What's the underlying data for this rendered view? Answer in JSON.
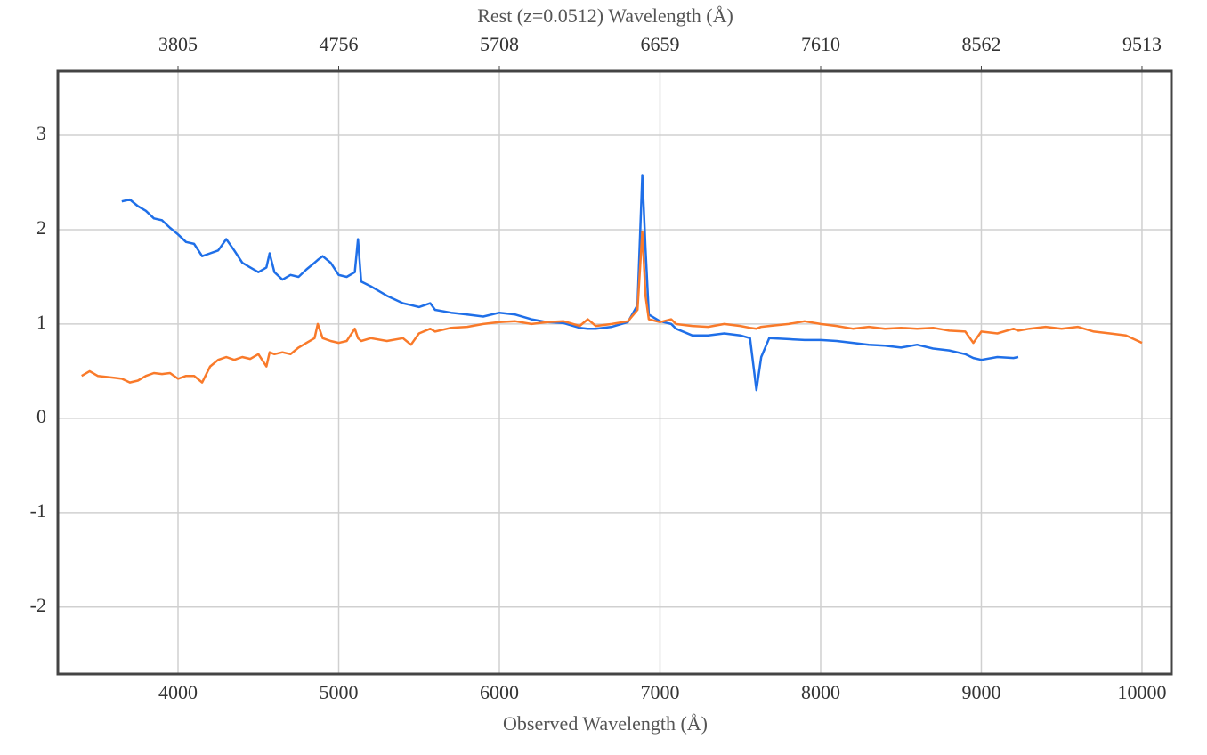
{
  "chart_data": {
    "type": "line",
    "title": "Rest (z=0.0512) Wavelength (Å)",
    "x_label": "Observed Wavelength (Å)",
    "x": [
      3400,
      3450,
      3500,
      3600,
      3650,
      3700,
      3750,
      3800,
      3850,
      3900,
      3950,
      4000,
      4050,
      4100,
      4150,
      4200,
      4250,
      4300,
      4350,
      4400,
      4450,
      4500,
      4550,
      4570,
      4600,
      4650,
      4700,
      4750,
      4800,
      4850,
      4870,
      4900,
      4950,
      5000,
      5050,
      5100,
      5120,
      5140,
      5200,
      5300,
      5400,
      5450,
      5500,
      5570,
      5600,
      5700,
      5800,
      5900,
      6000,
      6100,
      6200,
      6300,
      6400,
      6500,
      6550,
      6600,
      6700,
      6800,
      6860,
      6890,
      6910,
      6930,
      7000,
      7070,
      7100,
      7200,
      7300,
      7400,
      7500,
      7560,
      7600,
      7630,
      7680,
      7800,
      7900,
      8000,
      8100,
      8200,
      8300,
      8400,
      8500,
      8600,
      8700,
      8800,
      8900,
      8950,
      9000,
      9100,
      9200,
      9230,
      9300,
      9400,
      9500,
      9600,
      9700,
      9800,
      9900,
      10000
    ],
    "series": [
      {
        "color": "#1f6fe8",
        "values": [
          null,
          null,
          null,
          null,
          2.3,
          2.32,
          2.25,
          2.2,
          2.12,
          2.1,
          2.02,
          1.95,
          1.87,
          1.85,
          1.72,
          1.75,
          1.78,
          1.9,
          1.78,
          1.65,
          1.6,
          1.55,
          1.6,
          1.75,
          1.55,
          1.47,
          1.52,
          1.5,
          1.58,
          1.65,
          1.68,
          1.72,
          1.65,
          1.52,
          1.5,
          1.55,
          1.9,
          1.45,
          1.4,
          1.3,
          1.22,
          1.2,
          1.18,
          1.22,
          1.15,
          1.12,
          1.1,
          1.08,
          1.12,
          1.1,
          1.05,
          1.02,
          1.01,
          0.96,
          0.95,
          0.95,
          0.97,
          1.02,
          1.2,
          2.58,
          1.8,
          1.1,
          1.03,
          1.0,
          0.95,
          0.88,
          0.88,
          0.9,
          0.88,
          0.85,
          0.3,
          0.65,
          0.85,
          0.84,
          0.83,
          0.83,
          0.82,
          0.8,
          0.78,
          0.77,
          0.75,
          0.78,
          0.74,
          0.72,
          0.68,
          0.64,
          0.62,
          0.65,
          0.64,
          0.65,
          null,
          null,
          null,
          null,
          null,
          null,
          null,
          null
        ]
      },
      {
        "color": "#f97a2a",
        "values": [
          0.45,
          0.5,
          0.45,
          0.43,
          0.42,
          0.38,
          0.4,
          0.45,
          0.48,
          0.47,
          0.48,
          0.42,
          0.45,
          0.45,
          0.38,
          0.55,
          0.62,
          0.65,
          0.62,
          0.65,
          0.63,
          0.68,
          0.55,
          0.7,
          0.68,
          0.7,
          0.68,
          0.75,
          0.8,
          0.85,
          1.0,
          0.85,
          0.82,
          0.8,
          0.82,
          0.95,
          0.85,
          0.82,
          0.85,
          0.82,
          0.85,
          0.78,
          0.9,
          0.95,
          0.92,
          0.96,
          0.97,
          1.0,
          1.02,
          1.03,
          1.0,
          1.02,
          1.03,
          0.98,
          1.05,
          0.98,
          1.0,
          1.03,
          1.15,
          1.98,
          1.3,
          1.05,
          1.02,
          1.05,
          1.0,
          0.98,
          0.97,
          1.0,
          0.98,
          0.96,
          0.95,
          0.97,
          0.98,
          1.0,
          1.03,
          1.0,
          0.98,
          0.95,
          0.97,
          0.95,
          0.96,
          0.95,
          0.96,
          0.93,
          0.92,
          0.8,
          0.92,
          0.9,
          0.95,
          0.93,
          0.95,
          0.97,
          0.95,
          0.97,
          0.92,
          0.9,
          0.88,
          0.8
        ]
      }
    ],
    "xlim": [
      3252,
      10183
    ],
    "xticks": [
      4000,
      5000,
      6000,
      7000,
      8000,
      9000,
      10000
    ],
    "x2lim": [
      3093.6,
      9687.0
    ],
    "x2ticks": [
      {
        "value": 3805.18,
        "label": "3805"
      },
      {
        "value": 4756.47,
        "label": "4756"
      },
      {
        "value": 5707.76,
        "label": "5708"
      },
      {
        "value": 6659.06,
        "label": "6659"
      },
      {
        "value": 7610.35,
        "label": "7610"
      },
      {
        "value": 8561.64,
        "label": "8562"
      },
      {
        "value": 9512.94,
        "label": "9513"
      }
    ],
    "ylim": [
      -2.71,
      3.68
    ],
    "yticks": [
      -2,
      -1,
      0,
      1,
      2,
      3
    ],
    "grid": true
  }
}
